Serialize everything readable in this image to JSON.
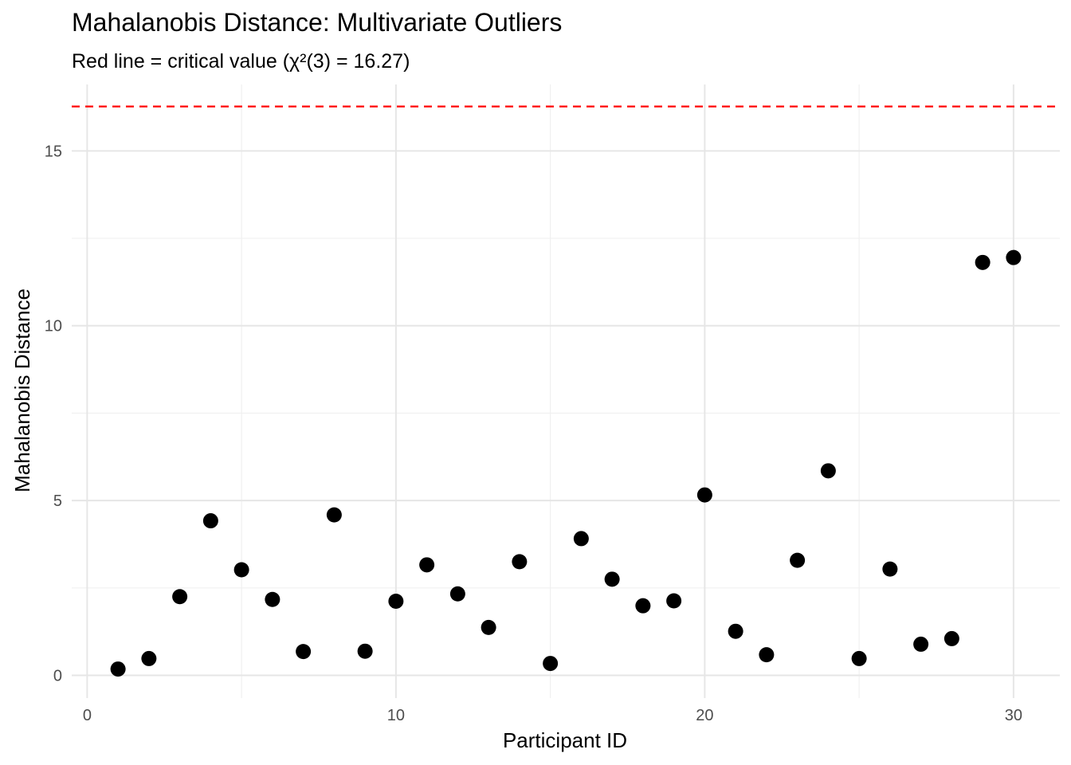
{
  "chart_data": {
    "type": "scatter",
    "title": "Mahalanobis Distance: Multivariate Outliers",
    "subtitle": "Red line = critical value (χ²(3) = 16.27)",
    "xlabel": "Participant ID",
    "ylabel": "Mahalanobis Distance",
    "xlim": [
      -0.5,
      31.5
    ],
    "ylim": [
      -0.65,
      16.9
    ],
    "x_ticks": [
      0,
      10,
      20,
      30
    ],
    "y_ticks": [
      0,
      5,
      10,
      15
    ],
    "x_tick_labels": [
      "0",
      "10",
      "20",
      "30"
    ],
    "y_tick_labels": [
      "0",
      "5",
      "10",
      "15"
    ],
    "grid": true,
    "critical_value": 16.27,
    "reference_line_color": "#ff0000",
    "point_color": "#000000",
    "x": [
      1,
      2,
      3,
      4,
      5,
      6,
      7,
      8,
      9,
      10,
      11,
      12,
      13,
      14,
      15,
      16,
      17,
      18,
      19,
      20,
      21,
      22,
      23,
      24,
      25,
      26,
      27,
      28,
      29,
      30
    ],
    "y": [
      0.18,
      0.48,
      2.25,
      4.42,
      3.02,
      2.17,
      0.68,
      4.59,
      0.69,
      2.12,
      3.16,
      2.33,
      1.37,
      3.25,
      0.34,
      3.91,
      2.75,
      1.99,
      2.13,
      5.16,
      1.26,
      0.59,
      3.29,
      5.85,
      0.48,
      3.04,
      0.89,
      1.05,
      11.81,
      11.95
    ]
  }
}
